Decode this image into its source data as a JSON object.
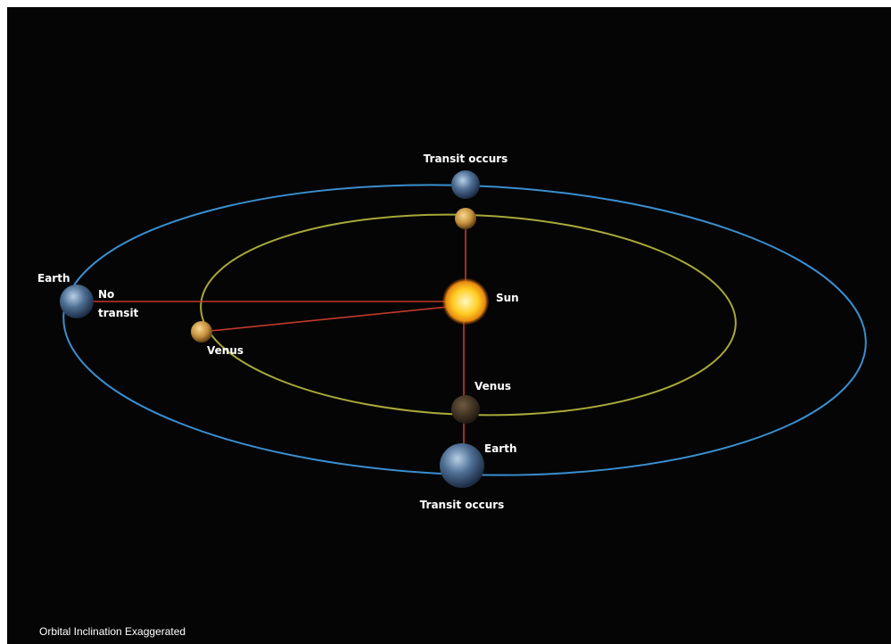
{
  "labels": {
    "top_transit": "Transit occurs",
    "left_earth": "Earth",
    "no_transit": [
      "No",
      "transit"
    ],
    "sun": "Sun",
    "left_venus": "Venus",
    "bottom_venus": "Venus",
    "bottom_earth": "Earth",
    "bottom_transit": "Transit occurs"
  },
  "caption": "Orbital Inclination Exaggerated"
}
